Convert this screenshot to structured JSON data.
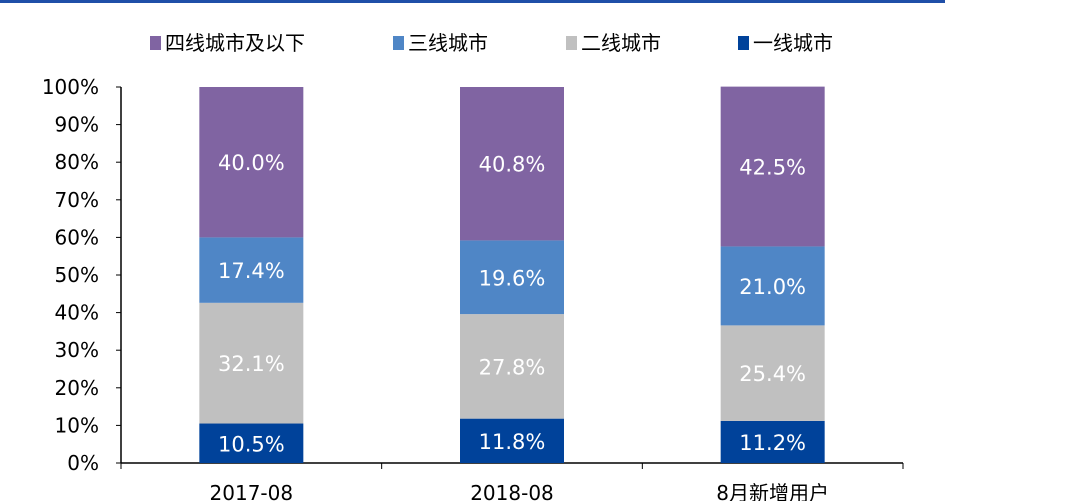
{
  "chart_data": {
    "type": "bar",
    "stacked": true,
    "categories": [
      "2017-08",
      "2018-08",
      "8月新增用户"
    ],
    "series": [
      {
        "name": "一线城市",
        "color": "#00429A",
        "values": [
          10.5,
          11.8,
          11.2
        ],
        "labels": [
          "10.5%",
          "11.8%",
          "11.2%"
        ]
      },
      {
        "name": "二线城市",
        "color": "#C0C0C0",
        "values": [
          32.1,
          27.8,
          25.4
        ],
        "labels": [
          "32.1%",
          "27.8%",
          "25.4%"
        ]
      },
      {
        "name": "三线城市",
        "color": "#4F86C6",
        "values": [
          17.4,
          19.6,
          21.0
        ],
        "labels": [
          "17.4%",
          "19.6%",
          "21.0%"
        ]
      },
      {
        "name": "四线城市及以下",
        "color": "#8064A2",
        "values": [
          40.0,
          40.8,
          42.5
        ],
        "labels": [
          "40.0%",
          "40.8%",
          "42.5%"
        ]
      }
    ],
    "legend_order": [
      "四线城市及以下",
      "三线城市",
      "二线城市",
      "一线城市"
    ],
    "legend_position": "top",
    "yticks": [
      "0%",
      "10%",
      "20%",
      "30%",
      "40%",
      "50%",
      "60%",
      "70%",
      "80%",
      "90%",
      "100%"
    ],
    "ylim": [
      0,
      100
    ],
    "grid": false
  }
}
